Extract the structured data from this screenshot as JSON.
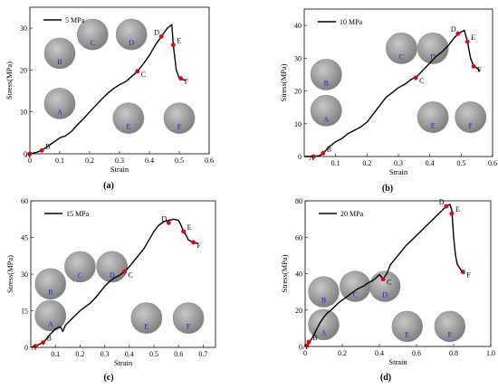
{
  "chart_data": [
    {
      "type": "line",
      "panel": "(a)",
      "legend": "5 MPa",
      "legend_placement": "top-left",
      "xlabel": "Strain",
      "ylabel": "Stress(MPa)",
      "xlim": [
        0,
        0.6
      ],
      "ylim": [
        0,
        35
      ],
      "xticks": [
        0,
        0.1,
        0.2,
        0.3,
        0.4,
        0.5,
        0.6
      ],
      "xtick_labels": [
        "0",
        "0.1",
        "0.2",
        "0.3",
        "0.4",
        "0.5",
        "0.6"
      ],
      "yticks": [
        0,
        10,
        20,
        30
      ],
      "ytick_labels": [
        "0",
        "10",
        "20",
        "30"
      ],
      "grid": false,
      "series": [
        {
          "x": [
            0.0,
            0.02,
            0.04,
            0.06,
            0.08,
            0.1,
            0.12,
            0.14,
            0.16,
            0.18,
            0.2,
            0.22,
            0.24,
            0.26,
            0.28,
            0.3,
            0.32,
            0.34,
            0.36,
            0.38,
            0.4,
            0.42,
            0.44,
            0.46,
            0.475,
            0.48,
            0.49,
            0.5,
            0.51,
            0.52
          ],
          "y": [
            0.0,
            0.3,
            0.8,
            1.8,
            2.8,
            3.8,
            4.3,
            5.4,
            7.0,
            8.4,
            10.0,
            11.5,
            13.0,
            14.4,
            15.6,
            16.5,
            17.2,
            18.4,
            19.7,
            21.5,
            23.5,
            26.0,
            28.0,
            30.0,
            30.8,
            26.0,
            20.0,
            18.0,
            17.8,
            17.5
          ]
        }
      ],
      "points": [
        {
          "label": "A",
          "x": 0.0,
          "y": 0.0
        },
        {
          "label": "B",
          "x": 0.04,
          "y": 0.8
        },
        {
          "label": "C",
          "x": 0.36,
          "y": 19.7
        },
        {
          "label": "D",
          "x": 0.44,
          "y": 28.0
        },
        {
          "label": "E",
          "x": 0.48,
          "y": 26.0
        },
        {
          "label": "F",
          "x": 0.505,
          "y": 18.0
        }
      ]
    },
    {
      "type": "line",
      "panel": "(b)",
      "legend": "10 MPa",
      "legend_placement": "top-left",
      "xlabel": "Strain",
      "ylabel": "Stress(MPa)",
      "xlim": [
        0.0,
        0.6
      ],
      "ylim": [
        0,
        45
      ],
      "xticks": [
        0.1,
        0.2,
        0.3,
        0.4,
        0.5,
        0.6
      ],
      "xtick_labels": [
        "0.1",
        "0.2",
        "0.3",
        "0.4",
        "0.5",
        "0.6"
      ],
      "yticks": [
        0,
        10,
        20,
        30,
        40
      ],
      "ytick_labels": [
        "0",
        "10",
        "20",
        "30",
        "40"
      ],
      "grid": false,
      "series": [
        {
          "x": [
            0.0,
            0.03,
            0.05,
            0.06,
            0.08,
            0.1,
            0.12,
            0.14,
            0.16,
            0.18,
            0.2,
            0.22,
            0.24,
            0.26,
            0.28,
            0.3,
            0.32,
            0.34,
            0.36,
            0.38,
            0.4,
            0.42,
            0.44,
            0.46,
            0.48,
            0.5,
            0.51,
            0.52,
            0.53,
            0.54,
            0.55,
            0.56
          ],
          "y": [
            0.0,
            0.0,
            0.3,
            1.0,
            3.0,
            4.5,
            5.5,
            7.0,
            8.0,
            9.0,
            10.5,
            13.0,
            15.5,
            18.0,
            19.5,
            21.0,
            22.0,
            23.5,
            24.5,
            26.5,
            28.5,
            30.5,
            32.0,
            34.0,
            36.5,
            38.0,
            38.5,
            35.0,
            30.0,
            27.5,
            27.0,
            26.0
          ]
        }
      ],
      "points": [
        {
          "label": "A",
          "x": 0.03,
          "y": 0.0
        },
        {
          "label": "B",
          "x": 0.06,
          "y": 1.0
        },
        {
          "label": "C",
          "x": 0.355,
          "y": 24.0
        },
        {
          "label": "D",
          "x": 0.49,
          "y": 37.5
        },
        {
          "label": "E",
          "x": 0.52,
          "y": 35.0
        },
        {
          "label": "F",
          "x": 0.54,
          "y": 27.5
        }
      ]
    },
    {
      "type": "line",
      "panel": "(c)",
      "legend": "15 MPa",
      "legend_placement": "top-left",
      "xlabel": "Strain",
      "ylabel": "Stress(MPa)",
      "xlim": [
        0,
        0.75
      ],
      "ylim": [
        0,
        60
      ],
      "xticks": [
        0.1,
        0.2,
        0.3,
        0.4,
        0.5,
        0.6,
        0.7
      ],
      "xtick_labels": [
        "0.1",
        "0.2",
        "0.3",
        "0.4",
        "0.5",
        "0.6",
        "0.7"
      ],
      "yticks": [
        0,
        15,
        30,
        45,
        60
      ],
      "ytick_labels": [
        "0",
        "15",
        "30",
        "45",
        "60"
      ],
      "grid": false,
      "series": [
        {
          "x": [
            0.0,
            0.02,
            0.04,
            0.06,
            0.08,
            0.1,
            0.12,
            0.13,
            0.14,
            0.16,
            0.18,
            0.2,
            0.22,
            0.24,
            0.26,
            0.28,
            0.3,
            0.32,
            0.34,
            0.36,
            0.38,
            0.4,
            0.42,
            0.44,
            0.46,
            0.48,
            0.5,
            0.52,
            0.54,
            0.56,
            0.58,
            0.6,
            0.61,
            0.62,
            0.63,
            0.64,
            0.66,
            0.68
          ],
          "y": [
            0.0,
            0.5,
            1.5,
            3.0,
            5.5,
            7.5,
            8.5,
            6.5,
            9.0,
            11.0,
            13.0,
            15.0,
            16.5,
            18.0,
            20.0,
            22.5,
            25.0,
            27.0,
            28.5,
            29.5,
            31.0,
            33.0,
            35.5,
            38.0,
            40.5,
            44.0,
            47.5,
            50.0,
            51.5,
            52.0,
            52.5,
            52.0,
            50.0,
            47.5,
            46.0,
            44.0,
            43.0,
            42.5
          ]
        }
      ],
      "points": [
        {
          "label": "A",
          "x": 0.02,
          "y": 0.5
        },
        {
          "label": "B",
          "x": 0.05,
          "y": 2.0
        },
        {
          "label": "C",
          "x": 0.38,
          "y": 31.0
        },
        {
          "label": "D",
          "x": 0.56,
          "y": 51.0
        },
        {
          "label": "E",
          "x": 0.62,
          "y": 47.5
        },
        {
          "label": "F",
          "x": 0.66,
          "y": 43.0
        }
      ]
    },
    {
      "type": "line",
      "panel": "(d)",
      "legend": "20 MPa",
      "legend_placement": "top-left",
      "xlabel": "Strain",
      "ylabel": "Stress(MPa)",
      "xlim": [
        0,
        1.0
      ],
      "ylim": [
        0,
        80
      ],
      "xticks": [
        0,
        0.2,
        0.4,
        0.6,
        0.8,
        1.0
      ],
      "xtick_labels": [
        "0",
        "0.2",
        "0.4",
        "0.6",
        "0.8",
        "1.0"
      ],
      "yticks": [
        0,
        20,
        40,
        60,
        80
      ],
      "ytick_labels": [
        "0",
        "20",
        "40",
        "60",
        "80"
      ],
      "grid": false,
      "series": [
        {
          "x": [
            0.0,
            0.01,
            0.02,
            0.04,
            0.06,
            0.08,
            0.1,
            0.12,
            0.14,
            0.16,
            0.18,
            0.2,
            0.22,
            0.24,
            0.26,
            0.28,
            0.3,
            0.32,
            0.34,
            0.36,
            0.38,
            0.4,
            0.42,
            0.44,
            0.46,
            0.5,
            0.54,
            0.58,
            0.62,
            0.66,
            0.7,
            0.74,
            0.76,
            0.78,
            0.79,
            0.8,
            0.81,
            0.82,
            0.84,
            0.86
          ],
          "y": [
            0.0,
            1.0,
            2.0,
            5.0,
            9.0,
            13.0,
            16.0,
            18.5,
            20.0,
            22.0,
            24.0,
            25.5,
            27.0,
            28.5,
            30.0,
            31.5,
            32.5,
            33.5,
            35.0,
            36.0,
            37.5,
            39.5,
            37.0,
            40.0,
            45.0,
            50.0,
            55.0,
            59.0,
            63.0,
            67.0,
            71.0,
            75.0,
            77.0,
            78.0,
            75.0,
            60.0,
            50.0,
            45.0,
            42.0,
            40.0
          ]
        }
      ],
      "points": [
        {
          "label": "A",
          "x": 0.01,
          "y": 0.5
        },
        {
          "label": "B",
          "x": 0.02,
          "y": 2.5
        },
        {
          "label": "C",
          "x": 0.42,
          "y": 37.0
        },
        {
          "label": "D",
          "x": 0.76,
          "y": 77.0
        },
        {
          "label": "E",
          "x": 0.79,
          "y": 73.0
        },
        {
          "label": "F",
          "x": 0.85,
          "y": 41.0
        }
      ]
    }
  ],
  "style": {
    "curve_color": "#000000",
    "marker_color": "#e00000",
    "point_label_color": "#000000",
    "specimen_label_color": "#1a1adc",
    "specimen_fill": "#b0b0b0",
    "specimen_edge": "#8c8c8c",
    "specimen_dark": "#7a7a7a"
  },
  "specimens": [
    [
      {
        "label": "A",
        "cx": 0.1,
        "cy": 12
      },
      {
        "label": "B",
        "cx": 0.1,
        "cy": 24
      },
      {
        "label": "C",
        "cx": 0.21,
        "cy": 28.5
      },
      {
        "label": "D",
        "cx": 0.34,
        "cy": 28.5
      },
      {
        "label": "E",
        "cx": 0.33,
        "cy": 8.5
      },
      {
        "label": "F",
        "cx": 0.5,
        "cy": 8.5
      }
    ],
    [
      {
        "label": "A",
        "cx": 0.07,
        "cy": 14
      },
      {
        "label": "B",
        "cx": 0.07,
        "cy": 25
      },
      {
        "label": "C",
        "cx": 0.31,
        "cy": 33
      },
      {
        "label": "D",
        "cx": 0.41,
        "cy": 33
      },
      {
        "label": "E",
        "cx": 0.41,
        "cy": 12
      },
      {
        "label": "F",
        "cx": 0.53,
        "cy": 12
      }
    ],
    [
      {
        "label": "A",
        "cx": 0.08,
        "cy": 13
      },
      {
        "label": "B",
        "cx": 0.08,
        "cy": 26
      },
      {
        "label": "C",
        "cx": 0.2,
        "cy": 33
      },
      {
        "label": "D",
        "cx": 0.33,
        "cy": 33
      },
      {
        "label": "E",
        "cx": 0.47,
        "cy": 12
      },
      {
        "label": "F",
        "cx": 0.64,
        "cy": 12
      }
    ],
    [
      {
        "label": "A",
        "cx": 0.1,
        "cy": 12
      },
      {
        "label": "B",
        "cx": 0.1,
        "cy": 30
      },
      {
        "label": "C",
        "cx": 0.27,
        "cy": 33
      },
      {
        "label": "D",
        "cx": 0.43,
        "cy": 33
      },
      {
        "label": "E",
        "cx": 0.55,
        "cy": 11
      },
      {
        "label": "F",
        "cx": 0.78,
        "cy": 11
      }
    ]
  ]
}
